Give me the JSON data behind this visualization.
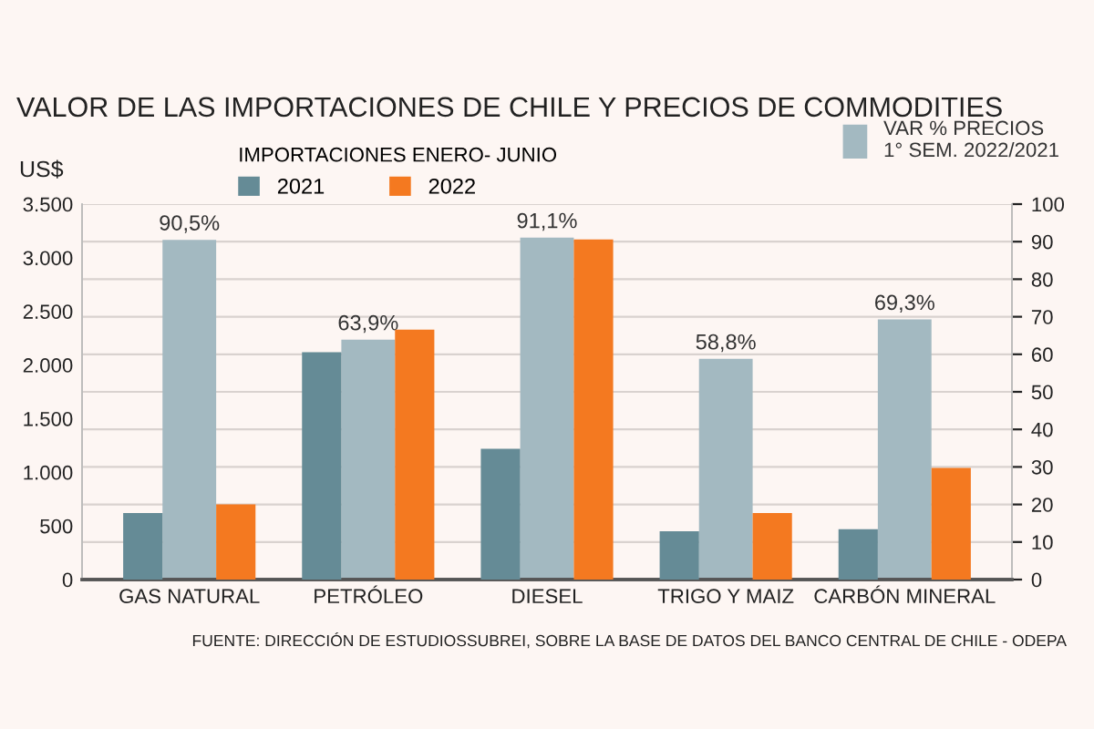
{
  "chart_data": {
    "type": "bar",
    "title": "VALOR DE LAS IMPORTACIONES DE CHILE Y PRECIOS DE COMMODITIES",
    "categories": [
      "GAS NATURAL",
      "PETRÓLEO",
      "DIESEL",
      "TRIGO Y MAIZ",
      "CARBÓN MINERAL"
    ],
    "series": [
      {
        "name": "2021",
        "color": "#658b96",
        "values": [
          620,
          2120,
          1220,
          450,
          470
        ]
      },
      {
        "name": "VAR % PRECIOS\n1° SEM. 2022/2021",
        "color": "#a3b9c1",
        "axis": "y2",
        "values": [
          90.5,
          63.9,
          91.1,
          58.8,
          69.3
        ],
        "value_labels": [
          "90,5%",
          "63,9%",
          "91,1%",
          "58,8%",
          "69,3%"
        ]
      },
      {
        "name": "2022",
        "color": "#f47920",
        "values": [
          700,
          2330,
          3170,
          620,
          1040
        ]
      }
    ],
    "ylabel": "US$",
    "legend_title": "IMPORTACIONES ENERO- JUNIO",
    "legend": "top",
    "ylim": [
      0,
      3500
    ],
    "yticks": [
      0,
      500,
      {
        "value": 1000,
        "label": "1.000"
      },
      {
        "value": 1500,
        "label": "1.500"
      },
      {
        "value": 2000,
        "label": "2.000"
      },
      {
        "value": 2500,
        "label": "2.500"
      },
      {
        "value": 3000,
        "label": "3.000"
      },
      {
        "value": 3500,
        "label": "3.500"
      }
    ],
    "y2lim": [
      0,
      100
    ],
    "y2ticks": [
      0,
      10,
      20,
      30,
      40,
      50,
      60,
      70,
      80,
      90,
      100
    ],
    "grid": "y",
    "annotations": [
      "FUENTE: DIRECCIÓN DE ESTUDIOSSUBREI, SOBRE LA BASE DE DATOS DEL BANCO CENTRAL DE CHILE - ODEPA"
    ]
  }
}
